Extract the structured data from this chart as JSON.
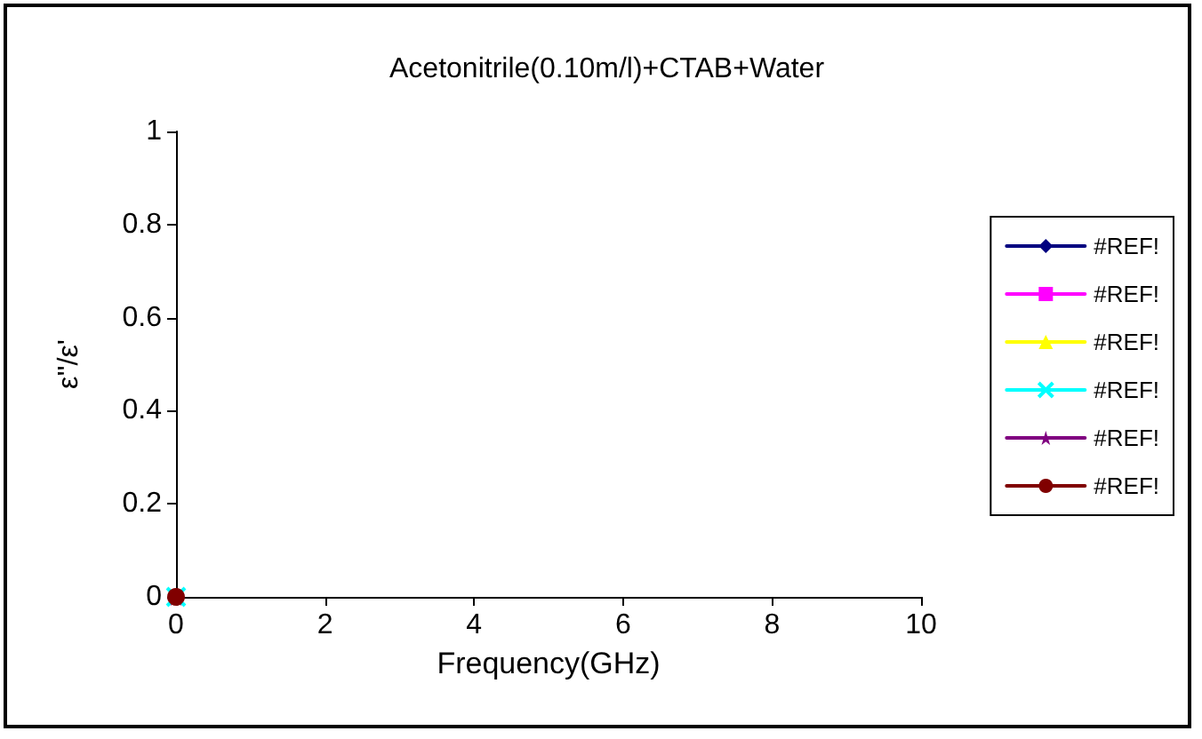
{
  "chart_data": {
    "type": "line",
    "title": "Acetonitrile(0.10m/l)+CTAB+Water",
    "xlabel": "Frequency(GHz)",
    "ylabel": "ε''/ε'",
    "x": [
      0
    ],
    "series": [
      {
        "name": "#REF!",
        "color": "#000080",
        "marker": "diamond",
        "values": [
          null
        ]
      },
      {
        "name": "#REF!",
        "color": "#ff00ff",
        "marker": "square",
        "values": [
          null
        ]
      },
      {
        "name": "#REF!",
        "color": "#ffff00",
        "marker": "triangle",
        "values": [
          null
        ]
      },
      {
        "name": "#REF!",
        "color": "#00ffff",
        "marker": "cross",
        "values": [
          0
        ]
      },
      {
        "name": "#REF!",
        "color": "#800080",
        "marker": "star",
        "values": [
          0
        ]
      },
      {
        "name": "#REF!",
        "color": "#800000",
        "marker": "circle",
        "values": [
          0
        ]
      }
    ],
    "xlim": [
      0,
      10
    ],
    "xticks": [
      0,
      2,
      4,
      6,
      8,
      10
    ],
    "ylim": [
      0,
      1
    ],
    "yticks": [
      0,
      0.2,
      0.4,
      0.6,
      0.8,
      1
    ],
    "grid": false,
    "legend": "right",
    "line_style": "solid"
  }
}
